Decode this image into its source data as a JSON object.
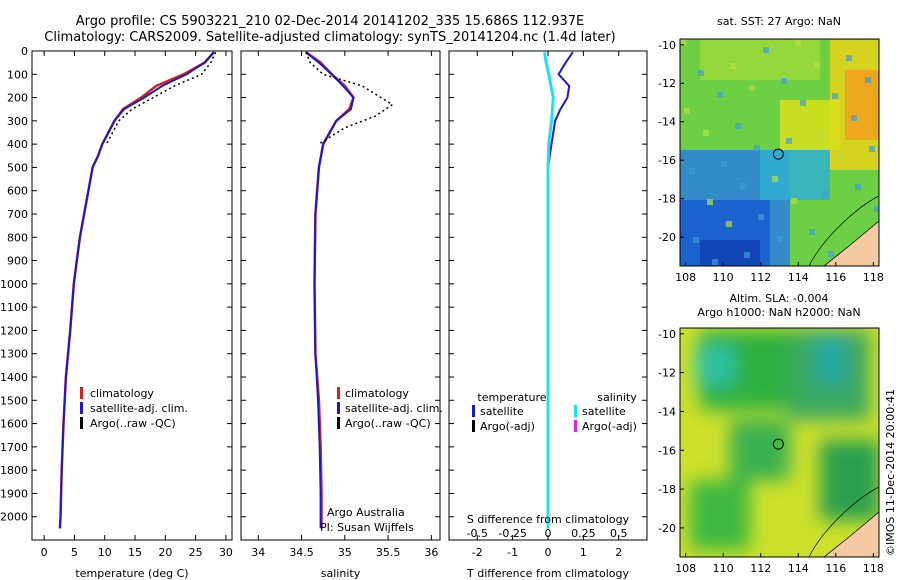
{
  "title_line1": "Argo profile: CS 5903221_210 02-Dec-2014 20141202_335 15.686S 112.937E",
  "title_line2": "Climatology: CARS2009. Satellite-adjusted climatology: synTS_20141204.nc (1.4d later)",
  "watermark": "©IMOS 11-Dec-2014 20:00:41",
  "colors": {
    "climatology": "#d92020",
    "satellite": "#1a1acc",
    "argo": "#000000",
    "sal_satellite": "#20e0f0",
    "sal_argo": "#e020e0"
  },
  "chart_data": [
    {
      "type": "line",
      "xlabel": "temperature (deg C)",
      "xlim": [
        -2,
        31
      ],
      "ylim": [
        2100,
        0
      ],
      "xticks": [
        0,
        5,
        10,
        15,
        20,
        25,
        30
      ],
      "yticks": [
        0,
        100,
        200,
        300,
        400,
        500,
        600,
        700,
        800,
        900,
        1000,
        1100,
        1200,
        1300,
        1400,
        1500,
        1600,
        1700,
        1800,
        1900,
        2000
      ],
      "legend": [
        "climatology",
        "satellite-adj. clim.",
        "Argo(..raw -QC)"
      ],
      "series": [
        {
          "name": "climatology",
          "x": [
            28,
            26.5,
            23,
            18.5,
            16,
            13,
            11.6,
            10.6,
            9.6,
            8.9,
            8,
            7.3,
            6.6,
            5.9,
            5.4,
            4.9,
            4.3,
            3.6,
            3.2,
            2.9,
            2.7,
            2.6
          ],
          "y": [
            5,
            50,
            100,
            150,
            200,
            250,
            300,
            350,
            400,
            450,
            500,
            600,
            700,
            800,
            900,
            1000,
            1200,
            1400,
            1600,
            1800,
            2000,
            2050
          ]
        },
        {
          "name": "satellite-adj. clim.",
          "x": [
            28,
            26.5,
            23.5,
            19.5,
            16.5,
            13.2,
            11.6,
            10.6,
            9.6,
            8.9,
            8,
            7.3,
            6.6,
            5.9,
            5.4,
            4.9,
            4.3,
            3.6,
            3.2,
            2.9,
            2.7,
            2.6
          ],
          "y": [
            5,
            50,
            100,
            150,
            200,
            250,
            300,
            350,
            400,
            450,
            500,
            600,
            700,
            800,
            900,
            1000,
            1200,
            1400,
            1600,
            1800,
            2000,
            2050
          ]
        },
        {
          "name": "Argo(..raw -QC)",
          "x": [
            28.3,
            27.5,
            26,
            21.5,
            18,
            14.5,
            12.3,
            10.3
          ],
          "y": [
            5,
            50,
            100,
            150,
            200,
            250,
            300,
            400
          ]
        }
      ]
    },
    {
      "type": "line",
      "xlabel": "salinity",
      "xlim": [
        33.8,
        36.1
      ],
      "ylim": [
        2100,
        0
      ],
      "xticks": [
        34,
        34.5,
        35,
        35.5,
        36
      ],
      "legend": [
        "climatology",
        "satellite-adj. clim.",
        "Argo(..raw -QC)"
      ],
      "annotation": [
        "Argo Australia",
        "PI: Susan Wijffels"
      ],
      "series": [
        {
          "name": "climatology",
          "x": [
            34.55,
            34.72,
            34.85,
            35.0,
            35.1,
            35.05,
            34.9,
            34.75,
            34.7,
            34.66,
            34.65,
            34.66,
            34.7,
            34.72,
            34.73,
            34.73
          ],
          "y": [
            5,
            50,
            100,
            150,
            200,
            250,
            300,
            400,
            500,
            700,
            1000,
            1300,
            1500,
            1700,
            1900,
            2050
          ]
        },
        {
          "name": "satellite-adj. clim.",
          "x": [
            34.55,
            34.7,
            34.85,
            34.98,
            35.1,
            35.07,
            34.9,
            34.75,
            34.7,
            34.66,
            34.65,
            34.66,
            34.69,
            34.71,
            34.72,
            34.72
          ],
          "y": [
            5,
            50,
            100,
            150,
            200,
            250,
            300,
            400,
            500,
            700,
            1000,
            1300,
            1500,
            1700,
            1900,
            2050
          ]
        },
        {
          "name": "Argo(..raw -QC)",
          "x": [
            34.55,
            34.6,
            34.75,
            35.2,
            35.55,
            35.35,
            35.0,
            34.7
          ],
          "y": [
            5,
            50,
            100,
            150,
            230,
            280,
            330,
            400
          ]
        }
      ]
    },
    {
      "type": "line",
      "xlabel": "T difference from climatology",
      "x2label": "S difference from climatology",
      "xlim": [
        -2.8,
        2.8
      ],
      "ylim": [
        2100,
        0
      ],
      "xticks": [
        -2,
        -1,
        0,
        1,
        2
      ],
      "x2ticks": [
        -0.5,
        -0.25,
        0,
        0.25,
        0.5
      ],
      "legend_left": {
        "header": "temperature",
        "items": [
          "satellite",
          "Argo(-adj)"
        ]
      },
      "legend_right": {
        "header": "salinity",
        "items": [
          "satellite",
          "Argo(-adj)"
        ]
      },
      "series": [
        {
          "name": "temperature satellite",
          "x": [
            0.7,
            0.5,
            0.3,
            0.6,
            0.55,
            0.35,
            0.2,
            0.1,
            0,
            0,
            0
          ],
          "y": [
            5,
            50,
            100,
            150,
            200,
            250,
            300,
            400,
            500,
            1000,
            2050
          ]
        },
        {
          "name": "salinity satellite",
          "x": [
            -0.1,
            -0.05,
            0.02,
            0.15,
            0.1,
            0.02,
            0,
            0,
            0
          ],
          "y": [
            5,
            50,
            100,
            200,
            300,
            400,
            500,
            1000,
            2050
          ]
        }
      ]
    },
    {
      "type": "heatmap",
      "title": "sat. SST: 27 Argo: NaN",
      "xlim": [
        107.7,
        118.3
      ],
      "ylim": [
        -21.5,
        -9.7
      ],
      "xticks": [
        108,
        110,
        112,
        114,
        116,
        118
      ],
      "yticks": [
        -10,
        -12,
        -14,
        -16,
        -18,
        -20
      ],
      "marker": [
        112.937,
        -15.686
      ]
    },
    {
      "type": "heatmap",
      "title": "Altim. SLA: -0.004",
      "subtitle": "Argo h1000: NaN h2000: NaN",
      "xlim": [
        107.7,
        118.3
      ],
      "ylim": [
        -21.5,
        -9.7
      ],
      "xticks": [
        108,
        110,
        112,
        114,
        116,
        118
      ],
      "yticks": [
        -10,
        -12,
        -14,
        -16,
        -18,
        -20
      ],
      "marker": [
        112.937,
        -15.686
      ]
    }
  ]
}
